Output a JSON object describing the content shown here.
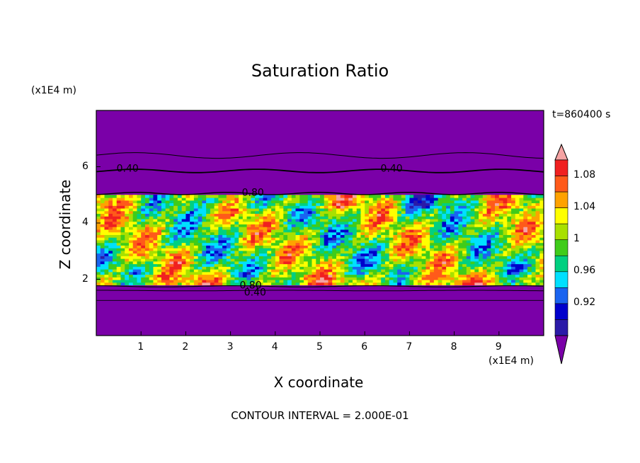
{
  "chart_data": {
    "type": "heatmap",
    "title": "Saturation Ratio",
    "xlabel": "X coordinate",
    "ylabel": "Z coordinate",
    "x_unit": "(x1E4 m)",
    "y_unit": "(x1E4 m)",
    "time_label": "t=860400 s",
    "footer": "CONTOUR INTERVAL = 2.000E-01",
    "xlim": [
      0,
      10
    ],
    "ylim": [
      0,
      8
    ],
    "x_ticks": [
      "1",
      "2",
      "3",
      "4",
      "5",
      "6",
      "7",
      "8",
      "9"
    ],
    "y_ticks": [
      "2",
      "4",
      "6"
    ],
    "colorbar": {
      "levels": [
        0.9,
        0.92,
        0.94,
        0.96,
        0.98,
        1,
        1.02,
        1.04,
        1.06,
        1.08,
        1.1
      ],
      "tick_labels": [
        "0.92",
        "0.96",
        "1",
        "1.04",
        "1.08"
      ],
      "colors": [
        "#7a00a8",
        "#2b1aa8",
        "#0000cc",
        "#1a64f0",
        "#00e0ff",
        "#00d080",
        "#3fcc1a",
        "#a8e000",
        "#ffff00",
        "#ffa200",
        "#ff5a1a",
        "#f02020",
        "#f5a3a3"
      ]
    },
    "contour_labels": [
      "0.40",
      "0.80",
      "0.40",
      "0.80",
      "0.40"
    ],
    "moist_layer_z": [
      1.8,
      5.0
    ]
  }
}
